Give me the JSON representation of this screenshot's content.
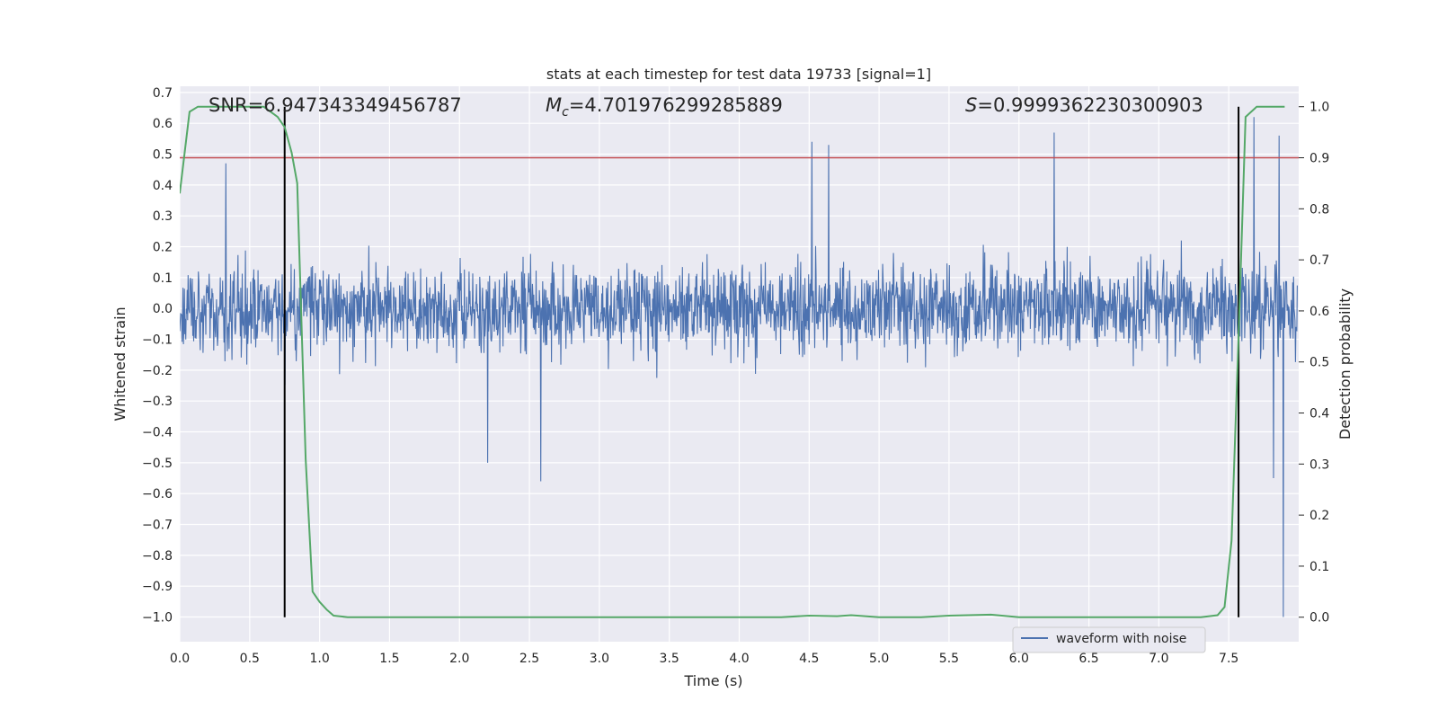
{
  "chart_data": {
    "type": "line",
    "title": "stats at each timestep for test data 19733 [signal=1]",
    "xlabel": "Time (s)",
    "ylabel": "Whitened strain",
    "y2label": "Detection probability",
    "xlim": [
      0.0,
      8.0
    ],
    "ylim": [
      -1.08,
      0.72
    ],
    "y2lim": [
      -0.048,
      1.04
    ],
    "xticks": [
      0.0,
      0.5,
      1.0,
      1.5,
      2.0,
      2.5,
      3.0,
      3.5,
      4.0,
      4.5,
      5.0,
      5.5,
      6.0,
      6.5,
      7.0,
      7.5
    ],
    "xtick_labels": [
      "0.0",
      "0.5",
      "1.0",
      "1.5",
      "2.0",
      "2.5",
      "3.0",
      "3.5",
      "4.0",
      "4.5",
      "5.0",
      "5.5",
      "6.0",
      "6.5",
      "7.0",
      "7.5"
    ],
    "yticks": [
      0.7,
      0.6,
      0.5,
      0.4,
      0.3,
      0.2,
      0.1,
      0.0,
      -0.1,
      -0.2,
      -0.3,
      -0.4,
      -0.5,
      -0.6,
      -0.7,
      -0.8,
      -0.9,
      -1.0
    ],
    "ytick_labels": [
      "0.7",
      "0.6",
      "0.5",
      "0.4",
      "0.3",
      "0.2",
      "0.1",
      "0.0",
      "−0.1",
      "−0.2",
      "−0.3",
      "−0.4",
      "−0.5",
      "−0.6",
      "−0.7",
      "−0.8",
      "−0.9",
      "−1.0"
    ],
    "y2ticks": [
      1.0,
      0.9,
      0.8,
      0.7,
      0.6,
      0.5,
      0.4,
      0.3,
      0.2,
      0.1,
      0.0
    ],
    "y2tick_labels": [
      "1.0",
      "0.9",
      "0.8",
      "0.7",
      "0.6",
      "0.5",
      "0.4",
      "0.3",
      "0.2",
      "0.1",
      "0.0"
    ],
    "grid": true,
    "legend_position": "bottom-right",
    "annotations": {
      "snr": "SNR=6.947343349456787",
      "mc_symbol": "M",
      "mc_subscript": "c",
      "mc_value": "=4.701976299285889",
      "s_symbol": "S",
      "s_value": "=0.9999362230300903"
    },
    "series": [
      {
        "name": "waveform with noise",
        "axis": "left",
        "color": "#4c72b0",
        "description_stats": {
          "core_abs": 0.17,
          "typical_peak": 0.32,
          "max_peak": 0.62,
          "min_peak": -1.0
        },
        "notable_peaks": [
          {
            "x": 0.33,
            "y": 0.47
          },
          {
            "x": 2.2,
            "y": -0.5
          },
          {
            "x": 2.58,
            "y": -0.56
          },
          {
            "x": 4.52,
            "y": 0.54
          },
          {
            "x": 4.64,
            "y": 0.53
          },
          {
            "x": 6.25,
            "y": 0.57
          },
          {
            "x": 7.68,
            "y": 0.62
          },
          {
            "x": 7.82,
            "y": -0.55
          },
          {
            "x": 7.86,
            "y": 0.56
          },
          {
            "x": 7.89,
            "y": -1.0
          }
        ]
      },
      {
        "name": "",
        "axis": "right",
        "color": "#55a868",
        "x": [
          0.0,
          0.07,
          0.13,
          0.3,
          0.5,
          0.6,
          0.65,
          0.7,
          0.75,
          0.8,
          0.84,
          0.9,
          0.95,
          1.0,
          1.05,
          1.1,
          1.2,
          1.5,
          2.0,
          3.0,
          4.0,
          4.3,
          4.5,
          4.7,
          4.8,
          5.0,
          5.3,
          5.5,
          5.8,
          6.0,
          6.5,
          7.0,
          7.3,
          7.42,
          7.47,
          7.52,
          7.57,
          7.62,
          7.7,
          7.9
        ],
        "y": [
          0.83,
          0.99,
          1.0,
          1.0,
          1.0,
          1.0,
          0.99,
          0.98,
          0.96,
          0.91,
          0.85,
          0.31,
          0.05,
          0.03,
          0.015,
          0.003,
          0.0,
          0.0,
          0.0,
          0.0,
          0.0,
          0.0,
          0.003,
          0.002,
          0.004,
          0.0,
          0.0,
          0.003,
          0.005,
          0.0,
          0.0,
          0.0,
          0.0,
          0.004,
          0.02,
          0.15,
          0.55,
          0.98,
          1.0,
          1.0
        ]
      },
      {
        "name": "",
        "axis": "right",
        "type": "hline",
        "color": "#c44e52",
        "y": 0.9
      },
      {
        "name": "",
        "axis": "right",
        "type": "vlines",
        "color": "#000000",
        "x": [
          0.75,
          7.57
        ],
        "ymin": 0.0,
        "ymax": 1.0
      }
    ]
  }
}
